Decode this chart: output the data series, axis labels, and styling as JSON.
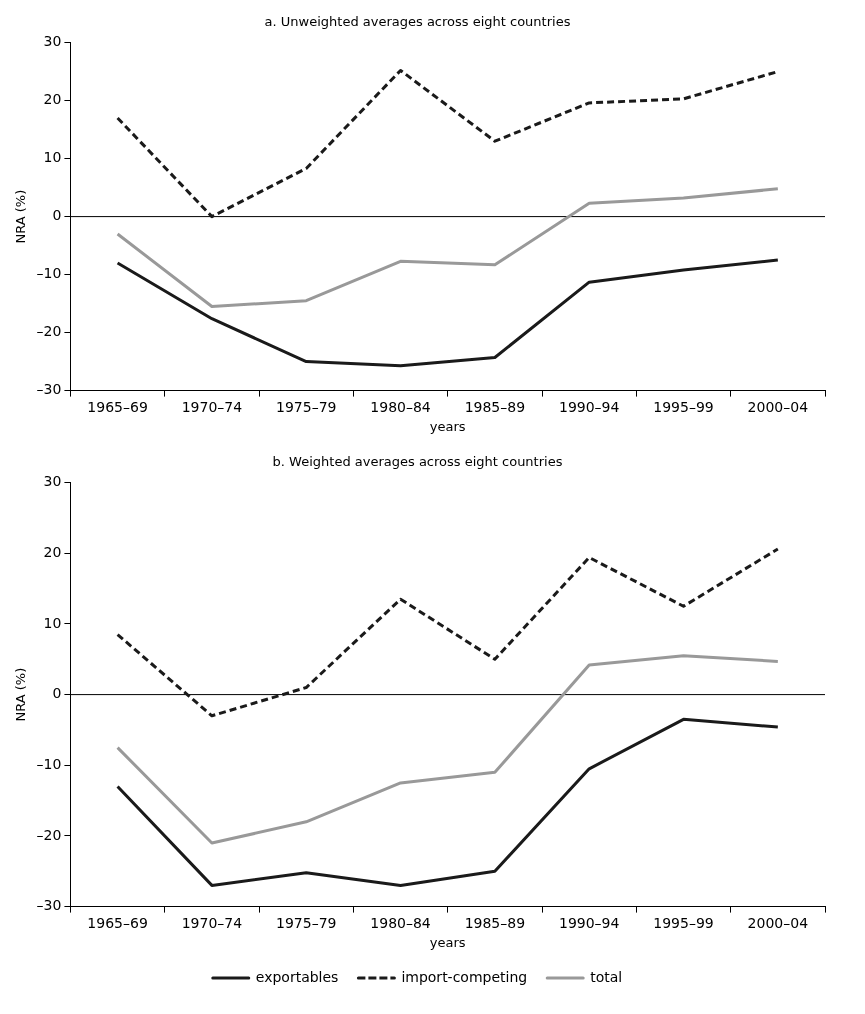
{
  "chart_data": [
    {
      "type": "line",
      "title": "a. Unweighted averages across eight countries",
      "xlabel": "years",
      "ylabel": "NRA (%)",
      "categories": [
        "1965–69",
        "1970–74",
        "1975–79",
        "1980–84",
        "1985–89",
        "1990–94",
        "1995–99",
        "2000–04"
      ],
      "ylim": [
        -30,
        30
      ],
      "yticks": [
        {
          "value": -30,
          "label": "–30"
        },
        {
          "value": -20,
          "label": "–20"
        },
        {
          "value": -10,
          "label": "–10"
        },
        0,
        10,
        20,
        30
      ],
      "grid": false,
      "legend": false,
      "marker": "none",
      "ref_lines": [
        {
          "axis": "y",
          "value": 0,
          "color": "#000000"
        }
      ],
      "series": [
        {
          "color": "#1a1a1a",
          "line_style": "solid",
          "values": [
            -8,
            -17.6,
            -25,
            -25.7,
            -24.3,
            -11.3,
            -9.2,
            -7.5
          ]
        },
        {
          "color": "#1a1a1a",
          "line_style": "dashed",
          "values": [
            17,
            0,
            8.3,
            25.2,
            13,
            19.6,
            20.3,
            25
          ]
        },
        {
          "color": "#999999",
          "line_style": "solid",
          "values": [
            -3,
            -15.5,
            -14.5,
            -7.7,
            -8.3,
            2.3,
            3.2,
            4.8
          ]
        }
      ]
    },
    {
      "type": "line",
      "title": "b. Weighted averages across eight countries",
      "xlabel": "years",
      "ylabel": "NRA (%)",
      "categories": [
        "1965–69",
        "1970–74",
        "1975–79",
        "1980–84",
        "1985–89",
        "1990–94",
        "1995–99",
        "2000–04"
      ],
      "ylim": [
        -30,
        30
      ],
      "yticks": [
        {
          "value": -30,
          "label": "–30"
        },
        {
          "value": -20,
          "label": "–20"
        },
        {
          "value": -10,
          "label": "–10"
        },
        0,
        10,
        20,
        30
      ],
      "grid": false,
      "legend": "bottom",
      "marker": "none",
      "ref_lines": [
        {
          "axis": "y",
          "value": 0,
          "color": "#000000"
        }
      ],
      "series": [
        {
          "name": "exportables",
          "color": "#1a1a1a",
          "line_style": "solid",
          "values": [
            -13,
            -27,
            -25.2,
            -27,
            -25,
            -10.5,
            -3.5,
            -4.6
          ]
        },
        {
          "name": "import-competing",
          "color": "#1a1a1a",
          "line_style": "dashed",
          "values": [
            8.5,
            -3,
            1,
            13.5,
            5,
            19.4,
            12.5,
            20.6
          ]
        },
        {
          "name": "total",
          "color": "#999999",
          "line_style": "solid",
          "values": [
            -7.5,
            -21,
            -18,
            -12.5,
            -11,
            4.2,
            5.5,
            4.7
          ]
        }
      ]
    }
  ]
}
